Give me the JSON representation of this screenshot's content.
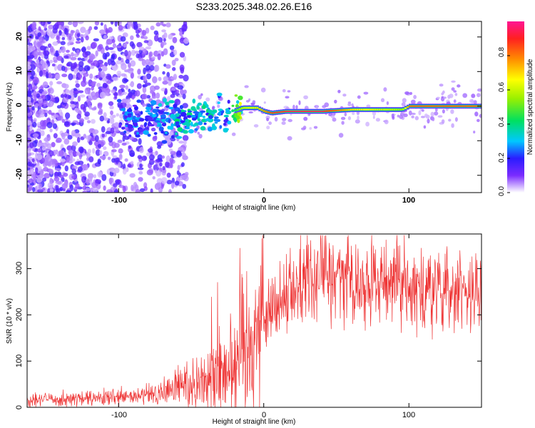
{
  "title": "S233.2025.348.02.26.E16",
  "chart_data": [
    {
      "type": "heatmap",
      "xlabel": "Height of straight line (km)",
      "ylabel": "Frequency (Hz)",
      "xlim": [
        -163,
        150
      ],
      "ylim": [
        -25,
        24.5
      ],
      "x_ticks": [
        -100,
        0,
        100
      ],
      "x_tick_labels": [
        "-100",
        "0",
        "100"
      ],
      "y_ticks": [
        20,
        10,
        0,
        -10,
        -20
      ],
      "y_tick_labels": [
        "20",
        "10",
        "0",
        "-10",
        "-20"
      ],
      "colorbar": {
        "label": "Normalized spectral amplitude",
        "range": [
          0,
          1
        ],
        "ticks": [
          0,
          0.2,
          0.4,
          0.6,
          0.8
        ],
        "tick_labels": [
          "0.0",
          "0.2",
          "0.4",
          "0.6",
          "0.8"
        ]
      },
      "ridge": {
        "x": [
          -80,
          -60,
          -40,
          -25,
          -15,
          -5,
          0,
          5,
          15,
          40,
          60,
          95,
          100,
          150
        ],
        "frequency": [
          -3.5,
          -4,
          -2.5,
          -2,
          -0.5,
          -0.5,
          -1.5,
          -2,
          -1.5,
          -1.5,
          -1,
          -1,
          0,
          0
        ],
        "amplitude": [
          0.25,
          0.35,
          0.35,
          0.3,
          0.6,
          0.7,
          0.8,
          0.9,
          0.95,
          0.95,
          0.7,
          0.55,
          0.85,
          0.85
        ]
      }
    },
    {
      "type": "line",
      "xlabel": "Height of straight line (km)",
      "ylabel": "SNR (10 * v/v)",
      "xlim": [
        -163,
        150
      ],
      "ylim": [
        0,
        375
      ],
      "x_ticks": [
        -100,
        0,
        100
      ],
      "x_tick_labels": [
        "-100",
        "0",
        "100"
      ],
      "y_ticks": [
        0,
        100,
        200,
        300
      ],
      "y_tick_labels": [
        "0",
        "100",
        "200",
        "300"
      ],
      "color": "#ee3333",
      "envelope": {
        "x": [
          -163,
          -120,
          -90,
          -70,
          -60,
          -50,
          -40,
          -30,
          -20,
          -10,
          0,
          10,
          20,
          30,
          50,
          80,
          110,
          130,
          150
        ],
        "snr": [
          18,
          18,
          22,
          30,
          45,
          55,
          60,
          75,
          110,
          150,
          190,
          230,
          265,
          285,
          285,
          270,
          255,
          250,
          250
        ]
      }
    }
  ]
}
